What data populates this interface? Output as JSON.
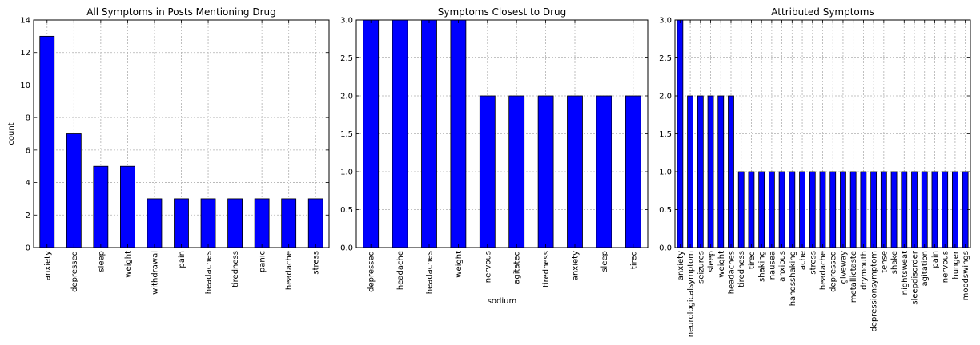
{
  "colors": {
    "bar": "#0000ff",
    "edge": "#000000",
    "grid": "#b0b0b0",
    "background": "#ffffff"
  },
  "chart_data": [
    {
      "type": "bar",
      "title": "All Symptoms in Posts Mentioning Drug",
      "xlabel": "",
      "ylabel": "count",
      "ylim": [
        0,
        14
      ],
      "yticks": [
        0,
        2,
        4,
        6,
        8,
        10,
        12,
        14
      ],
      "ytick_labels": [
        "0",
        "2",
        "4",
        "6",
        "8",
        "10",
        "12",
        "14"
      ],
      "grid": true,
      "categories": [
        "anxiety",
        "depressed",
        "sleep",
        "weight",
        "withdrawal",
        "pain",
        "headaches",
        "tiredness",
        "panic",
        "headache",
        "stress"
      ],
      "values": [
        13,
        7,
        5,
        5,
        3,
        3,
        3,
        3,
        3,
        3,
        3
      ]
    },
    {
      "type": "bar",
      "title": "Symptoms Closest to Drug",
      "xlabel": "sodium",
      "ylabel": "",
      "ylim": [
        0,
        3
      ],
      "yticks": [
        0,
        0.5,
        1,
        1.5,
        2,
        2.5,
        3
      ],
      "ytick_labels": [
        "0.0",
        "0.5",
        "1.0",
        "1.5",
        "2.0",
        "2.5",
        "3.0"
      ],
      "grid": true,
      "categories": [
        "depressed",
        "headache",
        "headaches",
        "weight",
        "nervous",
        "agitated",
        "tiredness",
        "anxiety",
        "sleep",
        "tired"
      ],
      "values": [
        3,
        3,
        3,
        3,
        2,
        2,
        2,
        2,
        2,
        2
      ]
    },
    {
      "type": "bar",
      "title": "Attributed Symptoms",
      "xlabel": "",
      "ylabel": "",
      "ylim": [
        0,
        3
      ],
      "yticks": [
        0,
        0.5,
        1,
        1.5,
        2,
        2.5,
        3
      ],
      "ytick_labels": [
        "0.0",
        "0.5",
        "1.0",
        "1.5",
        "2.0",
        "2.5",
        "3.0"
      ],
      "grid": true,
      "categories": [
        "anxiety",
        "neurologicalsymptom",
        "seizures",
        "sleep",
        "weight",
        "headaches",
        "tiredness",
        "tired",
        "shaking",
        "nausea",
        "anxious",
        "handsshaking",
        "ache",
        "stress",
        "headache",
        "depressed",
        "giveway",
        "metallictaste",
        "drymouth",
        "depressionsymptom",
        "tense",
        "shake",
        "nightsweat",
        "sleepdisorder",
        "agitation",
        "pain",
        "nervous",
        "hunger",
        "moodswings"
      ],
      "values": [
        3,
        2,
        2,
        2,
        2,
        2,
        1,
        1,
        1,
        1,
        1,
        1,
        1,
        1,
        1,
        1,
        1,
        1,
        1,
        1,
        1,
        1,
        1,
        1,
        1,
        1,
        1,
        1,
        1
      ]
    }
  ]
}
